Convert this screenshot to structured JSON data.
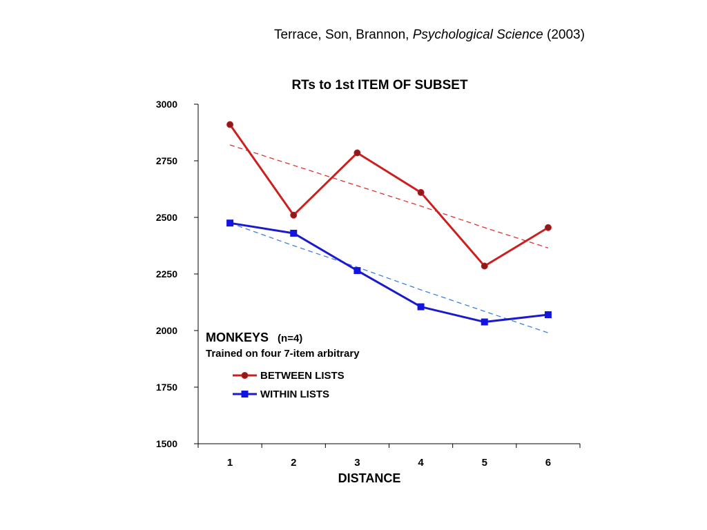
{
  "citation": {
    "authors": "Terrace, Son, Brannon,",
    "journal": "Psychological Science",
    "year": "(2003)"
  },
  "chart_data": {
    "type": "line",
    "title": "RTs to 1st ITEM OF SUBSET",
    "xlabel": "DISTANCE",
    "ylabel": "",
    "x": [
      1,
      2,
      3,
      4,
      5,
      6
    ],
    "x_tick_labels": [
      "1",
      "2",
      "3",
      "4",
      "5",
      "6"
    ],
    "ylim": [
      1500,
      3000
    ],
    "y_ticks": [
      1500,
      1750,
      2000,
      2250,
      2500,
      2750,
      3000
    ],
    "y_tick_labels": [
      "1500",
      "1750",
      "2000",
      "2250",
      "2500",
      "2750",
      "3000"
    ],
    "grid": false,
    "legend_position": "lower-left",
    "series": [
      {
        "name": "BETWEEN LISTS",
        "values": [
          2910,
          2510,
          2785,
          2610,
          2285,
          2455
        ],
        "color": "#cc1f1f",
        "marker": "circle",
        "marker_fill": "#8b1a1a",
        "trend": [
          2820,
          2730,
          2640,
          2550,
          2455,
          2365
        ],
        "trend_color": "#e03030"
      },
      {
        "name": "WITHIN LISTS",
        "values": [
          2475,
          2430,
          2265,
          2105,
          2038,
          2070
        ],
        "color": "#1a1acc",
        "marker": "square",
        "marker_fill": "#1414e0",
        "trend": [
          2475,
          2375,
          2280,
          2180,
          2085,
          1990
        ],
        "trend_color": "#3a7fe0"
      }
    ],
    "annotation": {
      "heading": "MONKEYS",
      "subheading": "(n=4)",
      "caption": "Trained on four 7-item arbitrary"
    }
  }
}
